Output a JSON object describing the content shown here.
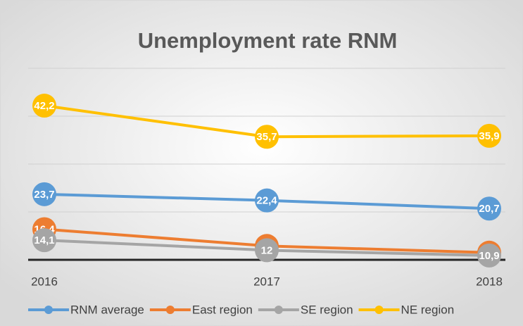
{
  "chart_data": {
    "type": "line",
    "title": "Unemployment rate RNM",
    "categories": [
      "2016",
      "2017",
      "2018"
    ],
    "series": [
      {
        "name": "RNM average",
        "color": "#5b9bd5",
        "values": [
          23.7,
          22.4,
          20.7
        ],
        "value_labels": [
          "23,7",
          "22,4",
          "20,7"
        ]
      },
      {
        "name": "East region",
        "color": "#ed7d31",
        "values": [
          16.4,
          12.9,
          11.5
        ],
        "value_labels": [
          "16,4",
          "12,9",
          "11,5"
        ]
      },
      {
        "name": "SE region",
        "color": "#a5a5a5",
        "values": [
          14.1,
          12,
          10.9
        ],
        "value_labels": [
          "14,1",
          "12",
          "10,9"
        ]
      },
      {
        "name": "NE region",
        "color": "#ffc000",
        "values": [
          42.2,
          35.7,
          35.9
        ],
        "value_labels": [
          "42,2",
          "35,7",
          "35,9"
        ]
      }
    ],
    "ylim": [
      10,
      50
    ],
    "yticks": [
      10,
      20,
      30,
      40,
      50
    ],
    "grid": true,
    "legend": "bottom"
  }
}
